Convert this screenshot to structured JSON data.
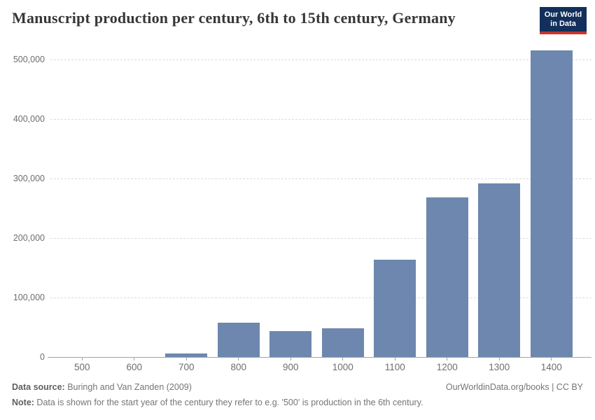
{
  "header": {
    "title": "Manuscript production per century, 6th to 15th century, Germany",
    "logo": {
      "line1": "Our World",
      "line2": "in Data"
    }
  },
  "chart_data": {
    "type": "bar",
    "title": "Manuscript production per century, 6th to 15th century, Germany",
    "categories": [
      "500",
      "600",
      "700",
      "800",
      "900",
      "1000",
      "1100",
      "1200",
      "1300",
      "1400"
    ],
    "values": [
      200,
      1000,
      7000,
      59000,
      45000,
      49000,
      165000,
      270000,
      293000,
      516000
    ],
    "xlabel": "",
    "ylabel": "",
    "ylim": [
      0,
      500000
    ],
    "yticks": [
      0,
      100000,
      200000,
      300000,
      400000,
      500000
    ],
    "ytick_labels": [
      "0",
      "100,000",
      "200,000",
      "300,000",
      "400,000",
      "500,000"
    ],
    "grid": "horizontal-dashed",
    "legend": "none",
    "bar_color": "#6d87ae"
  },
  "footer": {
    "data_source_label": "Data source:",
    "data_source_value": " Buringh and Van Zanden (2009)",
    "link": "OurWorldinData.org/books | CC BY",
    "note_label": "Note:",
    "note_value": " Data is shown for the start year of the century they refer to e.g. '500' is production in the 6th century."
  },
  "colors": {
    "bar": "#6d87ae",
    "title_text": "#373737",
    "axis_text": "#6e6e6e",
    "gridline": "#dcdcdc",
    "axis_line": "#a3a3a3",
    "footer_text": "#757575",
    "logo_navy": "#12305b",
    "logo_red": "#c9342e"
  }
}
